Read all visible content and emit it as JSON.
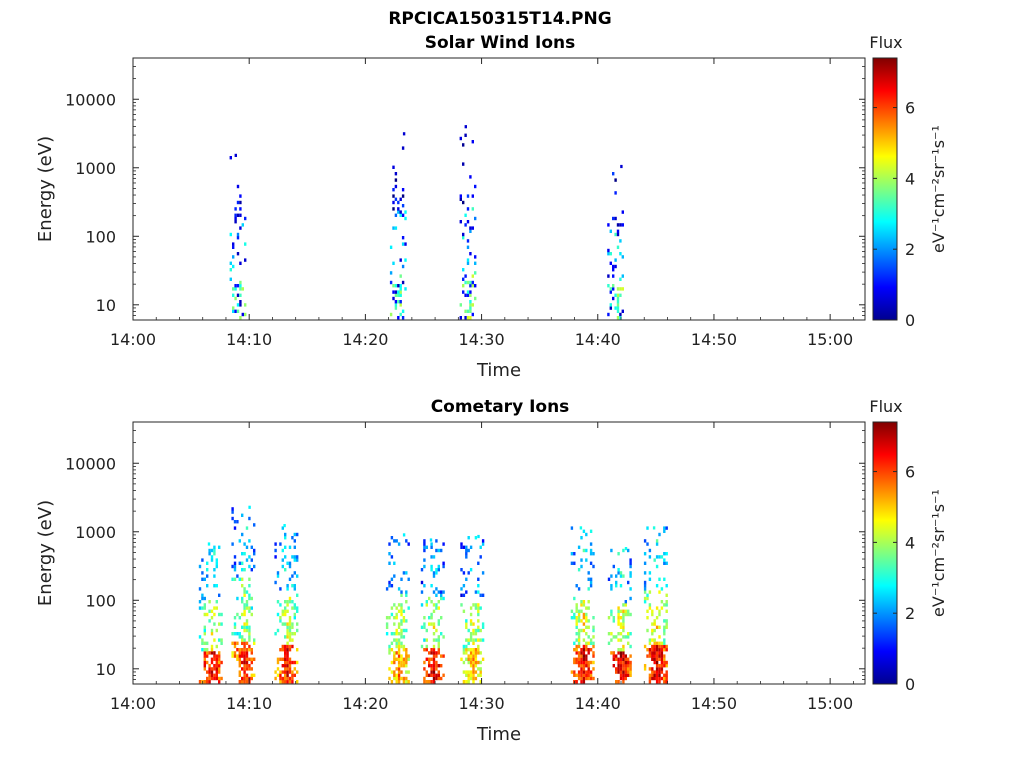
{
  "suptitle": "RPCICA150315T14.PNG",
  "chart_data": [
    {
      "type": "heatmap",
      "title": "Solar Wind Ions",
      "xlabel": "Time",
      "ylabel": "Energy (eV)",
      "x_ticks": [
        "14:00",
        "14:10",
        "14:20",
        "14:30",
        "14:40",
        "14:50",
        "15:00"
      ],
      "x_range": [
        "14:00",
        "15:03"
      ],
      "y_scale": "log",
      "y_ticks": [
        "10",
        "100",
        "1000",
        "10000"
      ],
      "y_range": [
        6,
        40000
      ],
      "colorbar": {
        "title": "Flux",
        "label": "eV⁻¹cm⁻²sr⁻¹s⁻¹",
        "ticks": [
          "0",
          "2",
          "4",
          "6"
        ],
        "range": [
          0,
          7.4
        ],
        "colormap": "jet"
      },
      "clusters": [
        {
          "time": "14:09",
          "low_energy_flux": 3.3,
          "mid_energy_flux": 2.5,
          "high_energy_flux": 0.6,
          "max_energy_ev": 1600
        },
        {
          "time": "14:22.8",
          "low_energy_flux": 3.4,
          "mid_energy_flux": 2.4,
          "high_energy_flux": 0.6,
          "max_energy_ev": 3300
        },
        {
          "time": "14:28.8",
          "low_energy_flux": 3.7,
          "mid_energy_flux": 2.6,
          "high_energy_flux": 0.6,
          "max_energy_ev": 4200
        },
        {
          "time": "14:41.5",
          "low_energy_flux": 3.6,
          "mid_energy_flux": 2.7,
          "high_energy_flux": 0.7,
          "max_energy_ev": 1100
        }
      ]
    },
    {
      "type": "heatmap",
      "title": "Cometary Ions",
      "xlabel": "Time",
      "ylabel": "Energy (eV)",
      "x_ticks": [
        "14:00",
        "14:10",
        "14:20",
        "14:30",
        "14:40",
        "14:50",
        "15:00"
      ],
      "x_range": [
        "14:00",
        "15:03"
      ],
      "y_scale": "log",
      "y_ticks": [
        "10",
        "100",
        "1000",
        "10000"
      ],
      "y_range": [
        6,
        40000
      ],
      "colorbar": {
        "title": "Flux",
        "label": "eV⁻¹cm⁻²sr⁻¹s⁻¹",
        "ticks": [
          "0",
          "2",
          "4",
          "6"
        ],
        "range": [
          0,
          7.4
        ],
        "colormap": "jet"
      },
      "clusters": [
        {
          "time": "14:06.7",
          "low_energy_flux": 6.6,
          "mid_energy_flux": 4.2,
          "high_energy_flux": 2.8,
          "max_energy_ev": 700
        },
        {
          "time": "14:09.5",
          "low_energy_flux": 6.3,
          "mid_energy_flux": 4.0,
          "high_energy_flux": 2.7,
          "max_energy_ev": 2400
        },
        {
          "time": "14:13.2",
          "low_energy_flux": 6.4,
          "mid_energy_flux": 4.2,
          "high_energy_flux": 2.8,
          "max_energy_ev": 1300
        },
        {
          "time": "14:22.8",
          "low_energy_flux": 5.5,
          "mid_energy_flux": 4.3,
          "high_energy_flux": 2.7,
          "max_energy_ev": 950
        },
        {
          "time": "14:25.8",
          "low_energy_flux": 6.6,
          "mid_energy_flux": 4.3,
          "high_energy_flux": 2.6,
          "max_energy_ev": 800
        },
        {
          "time": "14:29.2",
          "low_energy_flux": 5.2,
          "mid_energy_flux": 4.4,
          "high_energy_flux": 2.6,
          "max_energy_ev": 900
        },
        {
          "time": "14:38.7",
          "low_energy_flux": 6.6,
          "mid_energy_flux": 4.6,
          "high_energy_flux": 2.9,
          "max_energy_ev": 1200
        },
        {
          "time": "14:41.9",
          "low_energy_flux": 6.8,
          "mid_energy_flux": 4.6,
          "high_energy_flux": 2.9,
          "max_energy_ev": 600
        },
        {
          "time": "14:45",
          "low_energy_flux": 6.7,
          "mid_energy_flux": 4.7,
          "high_energy_flux": 3.0,
          "max_energy_ev": 1200
        }
      ]
    }
  ]
}
